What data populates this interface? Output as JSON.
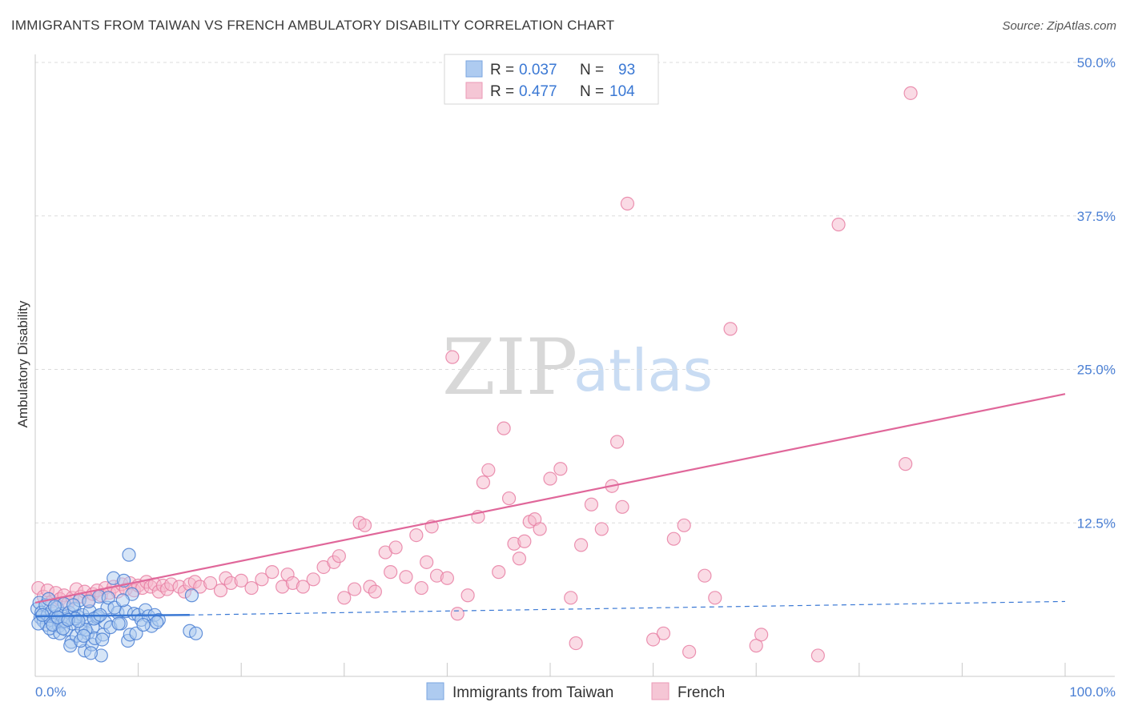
{
  "title": "IMMIGRANTS FROM TAIWAN VS FRENCH AMBULATORY DISABILITY CORRELATION CHART",
  "source": "Source: ZipAtlas.com",
  "watermark": {
    "zip": "ZIP",
    "atlas": "atlas"
  },
  "colors": {
    "blue": "#4a7fd4",
    "blue_fill": "#aecbf0",
    "blue_line": "#3a78d4",
    "pink": "#e87fa3",
    "pink_fill": "#f5b8cc",
    "pink_line": "#e0679a",
    "grid": "#dcdcdc",
    "axis": "#c8c8c8"
  },
  "legend": {
    "rows": [
      {
        "r_label": "R =",
        "r_value": "0.037",
        "n_label": "N =",
        "n_value": "93",
        "series": "taiwan"
      },
      {
        "r_label": "R =",
        "r_value": "0.477",
        "n_label": "N =",
        "n_value": "104",
        "series": "french"
      }
    ]
  },
  "chart_data": {
    "type": "scatter",
    "title": "IMMIGRANTS FROM TAIWAN VS FRENCH AMBULATORY DISABILITY CORRELATION CHART",
    "xlabel": "",
    "ylabel": "Ambulatory Disability",
    "xlim": [
      0,
      100
    ],
    "ylim": [
      0,
      50
    ],
    "x_tick_labels": [
      "0.0%",
      "100.0%"
    ],
    "y_ticks": [
      12.5,
      25.0,
      37.5,
      50.0
    ],
    "y_tick_labels": [
      "12.5%",
      "25.0%",
      "37.5%",
      "50.0%"
    ],
    "grid": true,
    "legend_position": "bottom-center",
    "series": [
      {
        "name": "Immigrants from Taiwan",
        "color": "#4a7fd4",
        "R": 0.037,
        "N": 93,
        "trend_solid": {
          "x": [
            0,
            15
          ],
          "y": [
            4.9,
            5.0
          ]
        },
        "trend_dashed": {
          "x": [
            15,
            100
          ],
          "y": [
            5.0,
            6.1
          ]
        },
        "points": [
          [
            0.2,
            5.5
          ],
          [
            0.4,
            6.0
          ],
          [
            0.5,
            4.8
          ],
          [
            0.6,
            5.2
          ],
          [
            0.8,
            4.5
          ],
          [
            1.0,
            5.8
          ],
          [
            1.1,
            4.2
          ],
          [
            1.2,
            5.0
          ],
          [
            1.3,
            6.3
          ],
          [
            1.5,
            4.6
          ],
          [
            1.6,
            5.3
          ],
          [
            1.8,
            3.6
          ],
          [
            2.0,
            4.9
          ],
          [
            2.1,
            5.6
          ],
          [
            2.3,
            4.1
          ],
          [
            2.5,
            5.1
          ],
          [
            2.6,
            4.4
          ],
          [
            2.8,
            5.9
          ],
          [
            3.0,
            3.8
          ],
          [
            3.1,
            4.7
          ],
          [
            3.3,
            5.2
          ],
          [
            3.5,
            2.8
          ],
          [
            3.6,
            4.3
          ],
          [
            3.8,
            5.5
          ],
          [
            4.0,
            3.3
          ],
          [
            4.1,
            4.9
          ],
          [
            4.3,
            6.2
          ],
          [
            4.5,
            3.9
          ],
          [
            4.6,
            5.0
          ],
          [
            4.8,
            2.1
          ],
          [
            5.0,
            4.6
          ],
          [
            5.1,
            3.5
          ],
          [
            5.3,
            5.3
          ],
          [
            5.5,
            2.6
          ],
          [
            5.6,
            4.0
          ],
          [
            5.8,
            3.1
          ],
          [
            6.0,
            4.8
          ],
          [
            6.2,
            6.5
          ],
          [
            6.4,
            1.7
          ],
          [
            6.6,
            3.4
          ],
          [
            6.8,
            4.4
          ],
          [
            7.0,
            5.6
          ],
          [
            7.3,
            4.0
          ],
          [
            7.6,
            8.0
          ],
          [
            8.0,
            5.2
          ],
          [
            8.3,
            4.3
          ],
          [
            8.6,
            7.8
          ],
          [
            8.8,
            5.3
          ],
          [
            9.0,
            2.9
          ],
          [
            9.2,
            3.4
          ],
          [
            9.4,
            6.7
          ],
          [
            9.6,
            5.1
          ],
          [
            10.0,
            5.0
          ],
          [
            10.3,
            4.6
          ],
          [
            10.7,
            5.4
          ],
          [
            11.0,
            4.9
          ],
          [
            11.3,
            4.1
          ],
          [
            11.6,
            5.0
          ],
          [
            12.0,
            4.6
          ],
          [
            15.0,
            3.7
          ],
          [
            15.2,
            6.6
          ],
          [
            15.6,
            3.5
          ],
          [
            0.3,
            4.3
          ],
          [
            0.7,
            5.0
          ],
          [
            1.4,
            3.9
          ],
          [
            1.9,
            5.7
          ],
          [
            2.4,
            3.5
          ],
          [
            2.9,
            4.5
          ],
          [
            3.4,
            2.5
          ],
          [
            3.9,
            4.7
          ],
          [
            4.4,
            2.9
          ],
          [
            4.9,
            3.8
          ],
          [
            5.4,
            1.9
          ],
          [
            6.1,
            4.9
          ],
          [
            6.5,
            3.0
          ],
          [
            7.1,
            6.4
          ],
          [
            7.7,
            5.6
          ],
          [
            8.1,
            4.3
          ],
          [
            8.5,
            6.2
          ],
          [
            9.1,
            9.9
          ],
          [
            9.8,
            3.5
          ],
          [
            10.5,
            4.2
          ],
          [
            11.8,
            4.4
          ],
          [
            1.7,
            4.2
          ],
          [
            2.2,
            4.8
          ],
          [
            2.7,
            3.9
          ],
          [
            3.2,
            4.6
          ],
          [
            3.7,
            5.8
          ],
          [
            4.2,
            4.5
          ],
          [
            4.7,
            3.3
          ],
          [
            5.2,
            6.1
          ],
          [
            5.7,
            4.7
          ],
          [
            6.3,
            5.0
          ]
        ]
      },
      {
        "name": "French",
        "color": "#e87fa3",
        "R": 0.477,
        "N": 104,
        "trend_solid": {
          "x": [
            0,
            100
          ],
          "y": [
            6.0,
            23.0
          ]
        },
        "points": [
          [
            0.3,
            7.2
          ],
          [
            0.8,
            6.5
          ],
          [
            1.2,
            7.0
          ],
          [
            1.6,
            6.1
          ],
          [
            2.0,
            6.8
          ],
          [
            2.4,
            6.3
          ],
          [
            2.8,
            6.6
          ],
          [
            3.2,
            6.0
          ],
          [
            3.6,
            6.4
          ],
          [
            4.0,
            7.1
          ],
          [
            4.4,
            6.5
          ],
          [
            4.8,
            6.9
          ],
          [
            5.2,
            6.2
          ],
          [
            5.6,
            6.7
          ],
          [
            6.0,
            7.0
          ],
          [
            6.4,
            6.6
          ],
          [
            6.8,
            7.2
          ],
          [
            7.2,
            6.8
          ],
          [
            7.6,
            7.3
          ],
          [
            8.0,
            6.9
          ],
          [
            8.4,
            7.5
          ],
          [
            8.8,
            7.1
          ],
          [
            9.2,
            7.6
          ],
          [
            9.6,
            7.0
          ],
          [
            10.0,
            7.4
          ],
          [
            10.4,
            7.2
          ],
          [
            10.8,
            7.7
          ],
          [
            11.2,
            7.3
          ],
          [
            11.6,
            7.5
          ],
          [
            12.0,
            6.9
          ],
          [
            12.4,
            7.4
          ],
          [
            12.8,
            7.1
          ],
          [
            13.2,
            7.5
          ],
          [
            14.0,
            7.3
          ],
          [
            14.5,
            6.9
          ],
          [
            15.0,
            7.5
          ],
          [
            15.5,
            7.7
          ],
          [
            16.0,
            7.3
          ],
          [
            17.0,
            7.6
          ],
          [
            18.0,
            7.0
          ],
          [
            18.5,
            8.0
          ],
          [
            19.0,
            7.6
          ],
          [
            20.0,
            7.8
          ],
          [
            21.0,
            7.2
          ],
          [
            22.0,
            7.9
          ],
          [
            23.0,
            8.5
          ],
          [
            24.0,
            7.3
          ],
          [
            24.5,
            8.3
          ],
          [
            25.0,
            7.6
          ],
          [
            26.0,
            7.3
          ],
          [
            27.0,
            7.9
          ],
          [
            28.0,
            8.9
          ],
          [
            29.0,
            9.3
          ],
          [
            29.5,
            9.8
          ],
          [
            30.0,
            6.4
          ],
          [
            31.0,
            7.1
          ],
          [
            31.5,
            12.5
          ],
          [
            32.0,
            12.3
          ],
          [
            32.5,
            7.3
          ],
          [
            33.0,
            6.9
          ],
          [
            34.0,
            10.1
          ],
          [
            34.5,
            8.5
          ],
          [
            35.0,
            10.5
          ],
          [
            36.0,
            8.1
          ],
          [
            37.0,
            11.5
          ],
          [
            37.5,
            7.2
          ],
          [
            38.0,
            9.3
          ],
          [
            38.5,
            12.2
          ],
          [
            39.0,
            8.2
          ],
          [
            40.0,
            8.0
          ],
          [
            40.5,
            26.0
          ],
          [
            41.0,
            5.1
          ],
          [
            42.0,
            6.6
          ],
          [
            43.0,
            13.0
          ],
          [
            43.5,
            15.8
          ],
          [
            44.0,
            16.8
          ],
          [
            45.0,
            8.5
          ],
          [
            45.5,
            20.2
          ],
          [
            46.0,
            14.5
          ],
          [
            46.5,
            10.8
          ],
          [
            47.0,
            9.6
          ],
          [
            47.5,
            11.0
          ],
          [
            48.0,
            12.6
          ],
          [
            48.5,
            12.8
          ],
          [
            49.0,
            12.0
          ],
          [
            50.0,
            16.1
          ],
          [
            51.0,
            16.9
          ],
          [
            52.0,
            6.4
          ],
          [
            52.5,
            2.7
          ],
          [
            53.0,
            10.7
          ],
          [
            54.0,
            14.0
          ],
          [
            55.0,
            12.0
          ],
          [
            56.0,
            15.5
          ],
          [
            56.5,
            19.1
          ],
          [
            57.0,
            13.8
          ],
          [
            57.5,
            38.5
          ],
          [
            60.0,
            3.0
          ],
          [
            61.0,
            3.5
          ],
          [
            62.0,
            11.2
          ],
          [
            63.0,
            12.3
          ],
          [
            63.5,
            2.0
          ],
          [
            65.0,
            8.2
          ],
          [
            66.0,
            6.4
          ],
          [
            67.5,
            28.3
          ],
          [
            70.0,
            2.5
          ],
          [
            70.5,
            3.4
          ],
          [
            76.0,
            1.7
          ],
          [
            78.0,
            36.8
          ],
          [
            84.5,
            17.3
          ],
          [
            85.0,
            47.5
          ]
        ]
      }
    ]
  },
  "bottom_legend": {
    "items": [
      {
        "label": "Immigrants from Taiwan",
        "series": "taiwan"
      },
      {
        "label": "French",
        "series": "french"
      }
    ]
  }
}
